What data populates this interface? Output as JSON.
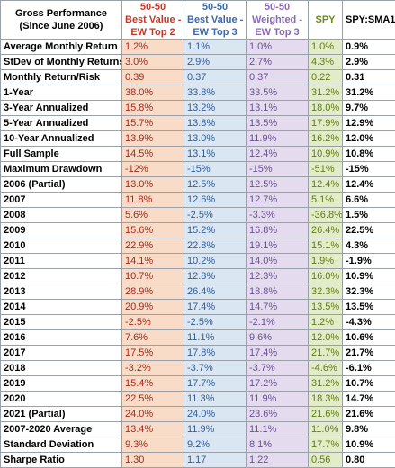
{
  "header": {
    "label_lines": [
      "Gross Performance",
      "(Since June 2006)"
    ],
    "columns": [
      {
        "lines": [
          "50-50",
          "Best Value -",
          "EW Top 2"
        ]
      },
      {
        "lines": [
          "50-50",
          "Best Value -",
          "EW Top 3"
        ]
      },
      {
        "lines": [
          "50-50",
          "Weighted -",
          "EW Top 3"
        ]
      },
      {
        "lines": [
          "SPY"
        ]
      },
      {
        "lines": [
          "SPY:SMA10"
        ]
      }
    ]
  },
  "colors": {
    "best_value_ew_top2": "#c0392b",
    "best_value_ew_top3": "#3b69a8",
    "weighted_ew_top3": "#8a6ab0",
    "spy": "#6e8a20"
  },
  "rows": [
    {
      "label": "Average Monthly Return",
      "values": [
        "1.2%",
        "1.1%",
        "1.0%",
        "1.0%",
        "0.9%"
      ]
    },
    {
      "label": "StDev of Monthly Returns",
      "values": [
        "3.0%",
        "2.9%",
        "2.7%",
        "4.3%",
        "2.9%"
      ]
    },
    {
      "label": "Monthly Return/Risk",
      "values": [
        "0.39",
        "0.37",
        "0.37",
        "0.22",
        "0.31"
      ]
    },
    {
      "label": "1-Year",
      "values": [
        "38.0%",
        "33.8%",
        "33.5%",
        "31.2%",
        "31.2%"
      ]
    },
    {
      "label": "3-Year Annualized",
      "values": [
        "15.8%",
        "13.2%",
        "13.1%",
        "18.0%",
        "9.7%"
      ]
    },
    {
      "label": "5-Year Annualized",
      "values": [
        "15.7%",
        "13.8%",
        "13.5%",
        "17.9%",
        "12.9%"
      ]
    },
    {
      "label": "10-Year Annualized",
      "values": [
        "13.9%",
        "13.0%",
        "11.9%",
        "16.2%",
        "12.0%"
      ]
    },
    {
      "label": "Full Sample",
      "values": [
        "14.5%",
        "13.1%",
        "12.4%",
        "10.9%",
        "10.8%"
      ]
    },
    {
      "label": "Maximum Drawdown",
      "values": [
        "-12%",
        "-15%",
        "-15%",
        "-51%",
        "-15%"
      ]
    },
    {
      "label": "2006 (Partial)",
      "values": [
        "13.0%",
        "12.5%",
        "12.5%",
        "12.4%",
        "12.4%"
      ]
    },
    {
      "label": "2007",
      "values": [
        "11.8%",
        "12.6%",
        "12.7%",
        "5.1%",
        "6.6%"
      ]
    },
    {
      "label": "2008",
      "values": [
        "5.6%",
        "-2.5%",
        "-3.3%",
        "-36.8%",
        "1.5%"
      ]
    },
    {
      "label": "2009",
      "values": [
        "15.6%",
        "15.2%",
        "16.8%",
        "26.4%",
        "22.5%"
      ]
    },
    {
      "label": "2010",
      "values": [
        "22.9%",
        "22.8%",
        "19.1%",
        "15.1%",
        "4.3%"
      ]
    },
    {
      "label": "2011",
      "values": [
        "14.1%",
        "10.2%",
        "14.0%",
        "1.9%",
        "-1.9%"
      ]
    },
    {
      "label": "2012",
      "values": [
        "10.7%",
        "12.8%",
        "12.3%",
        "16.0%",
        "10.9%"
      ]
    },
    {
      "label": "2013",
      "values": [
        "28.9%",
        "26.4%",
        "18.8%",
        "32.3%",
        "32.3%"
      ]
    },
    {
      "label": "2014",
      "values": [
        "20.9%",
        "17.4%",
        "14.7%",
        "13.5%",
        "13.5%"
      ]
    },
    {
      "label": "2015",
      "values": [
        "-2.5%",
        "-2.5%",
        "-2.1%",
        "1.2%",
        "-4.3%"
      ]
    },
    {
      "label": "2016",
      "values": [
        "7.6%",
        "11.1%",
        "9.6%",
        "12.0%",
        "10.6%"
      ]
    },
    {
      "label": "2017",
      "values": [
        "17.5%",
        "17.8%",
        "17.4%",
        "21.7%",
        "21.7%"
      ]
    },
    {
      "label": "2018",
      "values": [
        "-3.2%",
        "-3.7%",
        "-3.7%",
        "-4.6%",
        "-6.1%"
      ]
    },
    {
      "label": "2019",
      "values": [
        "15.4%",
        "17.7%",
        "17.2%",
        "31.2%",
        "10.7%"
      ]
    },
    {
      "label": "2020",
      "values": [
        "22.5%",
        "11.3%",
        "11.9%",
        "18.3%",
        "14.7%"
      ]
    },
    {
      "label": "2021 (Partial)",
      "values": [
        "24.0%",
        "24.0%",
        "23.6%",
        "21.6%",
        "21.6%"
      ]
    },
    {
      "label": "2007-2020 Average",
      "values": [
        "13.4%",
        "11.9%",
        "11.1%",
        "11.0%",
        "9.8%"
      ]
    },
    {
      "label": "Standard Deviation",
      "values": [
        "9.3%",
        "9.2%",
        "8.1%",
        "17.7%",
        "10.9%"
      ]
    },
    {
      "label": "Sharpe Ratio",
      "values": [
        "1.30",
        "1.17",
        "1.22",
        "0.56",
        "0.80"
      ]
    }
  ]
}
